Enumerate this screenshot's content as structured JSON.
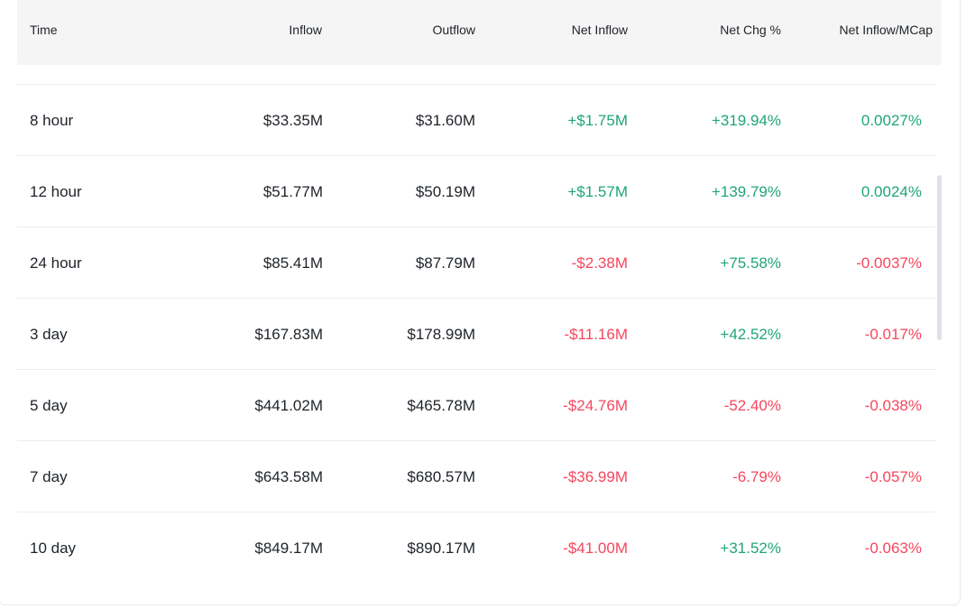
{
  "colors": {
    "positive": "#1fa57a",
    "negative": "#f6465d",
    "header_bg": "#f5f5f5"
  },
  "header": {
    "time": "Time",
    "inflow": "Inflow",
    "outflow": "Outflow",
    "net_inflow": "Net Inflow",
    "net_chg": "Net Chg %",
    "net_inflow_mcap": "Net Inflow/MCap"
  },
  "rows": [
    {
      "time": "8 hour",
      "inflow": "$33.35M",
      "outflow": "$31.60M",
      "net_inflow": "+$1.75M",
      "net_chg": "+319.94%",
      "net_inflow_mcap": "0.0027%"
    },
    {
      "time": "12 hour",
      "inflow": "$51.77M",
      "outflow": "$50.19M",
      "net_inflow": "+$1.57M",
      "net_chg": "+139.79%",
      "net_inflow_mcap": "0.0024%"
    },
    {
      "time": "24 hour",
      "inflow": "$85.41M",
      "outflow": "$87.79M",
      "net_inflow": "-$2.38M",
      "net_chg": "+75.58%",
      "net_inflow_mcap": "-0.0037%"
    },
    {
      "time": "3 day",
      "inflow": "$167.83M",
      "outflow": "$178.99M",
      "net_inflow": "-$11.16M",
      "net_chg": "+42.52%",
      "net_inflow_mcap": "-0.017%"
    },
    {
      "time": "5 day",
      "inflow": "$441.02M",
      "outflow": "$465.78M",
      "net_inflow": "-$24.76M",
      "net_chg": "-52.40%",
      "net_inflow_mcap": "-0.038%"
    },
    {
      "time": "7 day",
      "inflow": "$643.58M",
      "outflow": "$680.57M",
      "net_inflow": "-$36.99M",
      "net_chg": "-6.79%",
      "net_inflow_mcap": "-0.057%"
    },
    {
      "time": "10 day",
      "inflow": "$849.17M",
      "outflow": "$890.17M",
      "net_inflow": "-$41.00M",
      "net_chg": "+31.52%",
      "net_inflow_mcap": "-0.063%"
    }
  ]
}
